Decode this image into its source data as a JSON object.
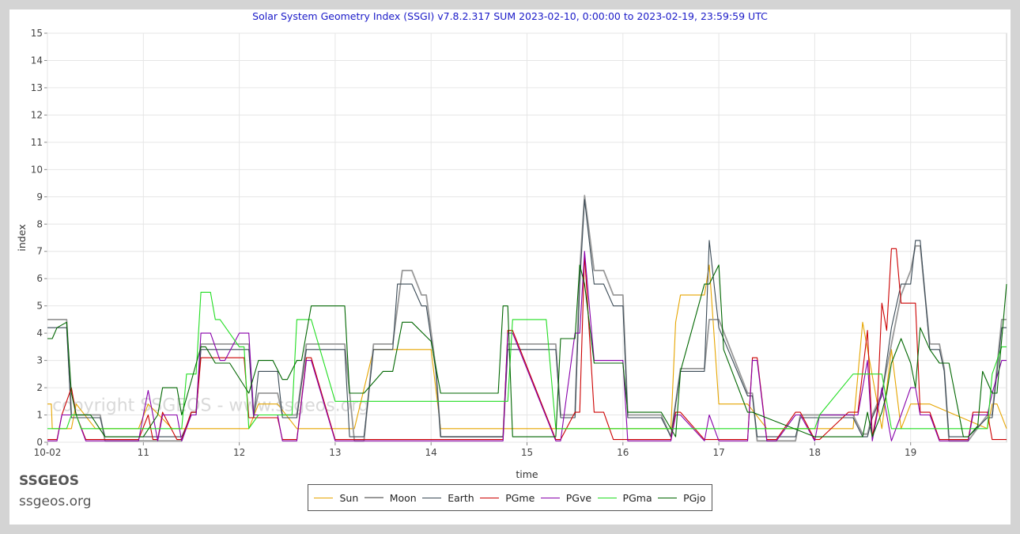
{
  "title": "Solar System Geometry Index (SSGI) v7.8.2.317 SUM 2023-02-10,  0:00:00 to 2023-02-19, 23:59:59 UTC",
  "brand": {
    "name": "SSGEOS",
    "url": "ssgeos.org"
  },
  "watermark": "copyright SSGEOS - www.ssgeos.org",
  "chart_data": {
    "type": "line",
    "title": "Solar System Geometry Index (SSGI) v7.8.2.317 SUM 2023-02-10,  0:00:00 to 2023-02-19, 23:59:59 UTC",
    "xlabel": "time",
    "ylabel": "index",
    "xlim": [
      10,
      20
    ],
    "ylim": [
      0,
      15
    ],
    "x_ticks": [
      10,
      11,
      12,
      13,
      14,
      15,
      16,
      17,
      18,
      19
    ],
    "x_tick_labels": [
      "10-02",
      "11",
      "12",
      "13",
      "14",
      "15",
      "16",
      "17",
      "18",
      "19"
    ],
    "y_ticks": [
      0,
      1,
      2,
      3,
      4,
      5,
      6,
      7,
      8,
      9,
      10,
      11,
      12,
      13,
      14,
      15
    ],
    "y_tick_labels": [
      "0",
      "1",
      "2",
      "3",
      "4",
      "5",
      "6",
      "7",
      "8",
      "9",
      "10",
      "11",
      "12",
      "13",
      "14",
      "15"
    ],
    "grid": true,
    "legend_position": "bottom-center",
    "series": [
      {
        "name": "Sun",
        "color": "#e6a500",
        "x": [
          10,
          10.04,
          10.05,
          10.25,
          10.3,
          10.5,
          10.95,
          11.05,
          11.3,
          11.5,
          12.1,
          12.2,
          12.4,
          12.6,
          12.7,
          13.2,
          13.4,
          13.5,
          14.0,
          14.1,
          14.8,
          15.4,
          16.5,
          16.55,
          16.6,
          16.85,
          16.9,
          17.0,
          17.3,
          17.5,
          18.4,
          18.5,
          18.7,
          18.8,
          18.9,
          19.0,
          19.2,
          19.8,
          19.85,
          19.9,
          20
        ],
        "y": [
          1.4,
          1.4,
          0.5,
          0.5,
          1.4,
          0.5,
          0.5,
          1.4,
          0.5,
          0.5,
          0.5,
          1.4,
          1.4,
          0.5,
          0.5,
          0.5,
          3.4,
          3.4,
          3.4,
          0.5,
          0.5,
          0.5,
          0.5,
          4.4,
          5.4,
          5.4,
          6.5,
          1.4,
          1.4,
          0.5,
          0.5,
          4.4,
          0.5,
          3.4,
          0.5,
          1.4,
          1.4,
          0.5,
          1.4,
          1.4,
          0.5
        ]
      },
      {
        "name": "Moon",
        "color": "#999999",
        "x": [
          10,
          10.2,
          10.25,
          10.3,
          10.4,
          10.55,
          10.6,
          10.95,
          11.0,
          11.4,
          11.5,
          11.55,
          11.6,
          12.0,
          12.1,
          12.15,
          12.2,
          12.4,
          12.45,
          12.6,
          12.7,
          12.75,
          13.1,
          13.2,
          13.3,
          13.4,
          13.6,
          13.7,
          13.8,
          13.9,
          13.95,
          14.05,
          14.1,
          14.75,
          14.8,
          14.85,
          15.3,
          15.35,
          15.5,
          15.55,
          15.6,
          15.7,
          15.8,
          15.9,
          16.0,
          16.05,
          16.4,
          16.5,
          16.6,
          16.85,
          16.9,
          17.0,
          17.3,
          17.35,
          17.4,
          17.6,
          17.8,
          17.85,
          18.0,
          18.05,
          18.4,
          18.5,
          18.55,
          18.6,
          18.7,
          18.8,
          18.9,
          19.0,
          19.05,
          19.1,
          19.2,
          19.3,
          19.35,
          19.4,
          19.6,
          19.8,
          19.85,
          19.95,
          20
        ],
        "y": [
          4.5,
          4.5,
          1.0,
          1.0,
          1.0,
          1.0,
          0.05,
          0.05,
          0.05,
          0.05,
          1.1,
          1.1,
          3.6,
          3.6,
          3.6,
          1.0,
          1.8,
          1.8,
          1.0,
          1.0,
          3.6,
          3.6,
          3.6,
          0.05,
          0.05,
          3.6,
          3.6,
          6.3,
          6.3,
          5.4,
          5.4,
          2.7,
          0.2,
          0.2,
          3.6,
          3.6,
          3.6,
          1.0,
          1.0,
          6.3,
          9.05,
          6.3,
          6.3,
          5.4,
          5.4,
          1.0,
          1.0,
          0.2,
          2.7,
          2.7,
          4.5,
          4.5,
          1.8,
          1.8,
          0.05,
          0.05,
          0.05,
          1.0,
          1.0,
          1.0,
          1.0,
          0.3,
          0.3,
          1.0,
          1.8,
          3.6,
          5.4,
          6.3,
          7.2,
          7.2,
          3.6,
          3.6,
          2.7,
          0.05,
          0.05,
          1.0,
          1.0,
          4.5,
          4.5
        ]
      },
      {
        "name": "Earth",
        "color": "#3a4a56",
        "x": [
          10,
          10.2,
          10.25,
          10.55,
          10.6,
          10.95,
          11.05,
          11.4,
          11.5,
          11.55,
          11.6,
          12.0,
          12.1,
          12.15,
          12.2,
          12.4,
          12.45,
          12.6,
          12.7,
          12.75,
          13.1,
          13.15,
          13.3,
          13.4,
          13.6,
          13.65,
          13.8,
          13.9,
          13.95,
          14.05,
          14.1,
          14.75,
          14.8,
          14.85,
          15.3,
          15.35,
          15.5,
          15.55,
          15.6,
          15.7,
          15.8,
          15.9,
          16.0,
          16.05,
          16.4,
          16.5,
          16.6,
          16.85,
          16.9,
          17.0,
          17.3,
          17.35,
          17.4,
          17.6,
          17.8,
          17.85,
          18.0,
          18.05,
          18.4,
          18.5,
          18.55,
          18.6,
          18.7,
          18.8,
          18.9,
          19.0,
          19.05,
          19.1,
          19.2,
          19.3,
          19.35,
          19.4,
          19.6,
          19.8,
          19.85,
          19.95,
          20
        ],
        "y": [
          4.2,
          4.2,
          0.9,
          0.9,
          0.2,
          0.2,
          0.2,
          0.2,
          1.0,
          1.0,
          3.4,
          3.4,
          3.4,
          0.9,
          2.6,
          2.6,
          0.9,
          0.9,
          3.4,
          3.4,
          3.4,
          0.2,
          0.2,
          3.4,
          3.4,
          5.8,
          5.8,
          5.0,
          5.0,
          2.6,
          0.2,
          0.2,
          3.4,
          3.4,
          3.4,
          0.9,
          0.9,
          5.8,
          8.9,
          5.8,
          5.8,
          5.0,
          5.0,
          0.9,
          0.9,
          0.2,
          2.6,
          2.6,
          7.4,
          4.2,
          1.7,
          1.7,
          0.2,
          0.2,
          0.2,
          0.9,
          0.9,
          0.9,
          0.9,
          0.2,
          0.2,
          0.9,
          1.7,
          4.2,
          5.8,
          5.8,
          7.4,
          7.4,
          3.4,
          3.4,
          2.6,
          0.2,
          0.2,
          0.9,
          0.9,
          4.2,
          4.2
        ]
      },
      {
        "name": "PGme",
        "color": "#cc0000",
        "x": [
          10,
          10.1,
          10.15,
          10.25,
          10.3,
          10.4,
          10.5,
          10.9,
          10.95,
          11.05,
          11.1,
          11.15,
          11.2,
          11.35,
          11.4,
          11.5,
          11.55,
          11.6,
          12.05,
          12.1,
          12.4,
          12.45,
          12.6,
          12.7,
          12.75,
          13.0,
          13.5,
          14.0,
          14.5,
          14.75,
          14.8,
          14.85,
          15.3,
          15.35,
          15.5,
          15.55,
          15.6,
          15.7,
          15.8,
          15.9,
          16.0,
          16.05,
          16.5,
          16.55,
          16.6,
          16.85,
          16.9,
          17.0,
          17.3,
          17.35,
          17.4,
          17.5,
          17.6,
          17.8,
          17.85,
          18.0,
          18.05,
          18.35,
          18.45,
          18.55,
          18.6,
          18.65,
          18.7,
          18.75,
          18.8,
          18.85,
          18.9,
          19.0,
          19.05,
          19.1,
          19.2,
          19.3,
          19.6,
          19.65,
          19.8,
          19.85,
          20
        ],
        "y": [
          0.1,
          0.1,
          1.0,
          2.0,
          1.0,
          0.1,
          0.1,
          0.1,
          0.1,
          1.0,
          0.1,
          0.1,
          1.1,
          0.1,
          0.1,
          1.1,
          1.1,
          3.1,
          3.1,
          0.9,
          0.9,
          0.1,
          0.1,
          3.1,
          3.1,
          0.1,
          0.1,
          0.1,
          0.1,
          0.1,
          4.1,
          4.1,
          0.1,
          0.1,
          1.1,
          1.1,
          6.9,
          1.1,
          1.1,
          0.1,
          0.1,
          0.1,
          0.1,
          1.1,
          1.1,
          0.1,
          0.1,
          0.1,
          0.1,
          3.1,
          3.1,
          0.1,
          0.1,
          1.1,
          1.1,
          0.1,
          0.1,
          1.1,
          1.1,
          4.1,
          0.2,
          1.1,
          5.1,
          4.1,
          7.1,
          7.1,
          5.1,
          5.1,
          5.1,
          1.1,
          1.1,
          0.1,
          0.1,
          1.1,
          1.1,
          0.1,
          0.1
        ]
      },
      {
        "name": "PGve",
        "color": "#8800aa",
        "x": [
          10,
          10.1,
          10.15,
          10.25,
          10.3,
          10.4,
          10.55,
          10.9,
          10.95,
          11.0,
          11.05,
          11.1,
          11.15,
          11.2,
          11.35,
          11.4,
          11.5,
          11.55,
          11.6,
          11.7,
          11.8,
          11.85,
          12.0,
          12.1,
          12.15,
          12.4,
          12.45,
          12.6,
          12.7,
          12.75,
          13.0,
          13.5,
          14.0,
          14.5,
          14.75,
          14.8,
          14.85,
          15.3,
          15.35,
          15.5,
          15.55,
          15.6,
          15.7,
          15.8,
          16.0,
          16.05,
          16.5,
          16.55,
          16.6,
          16.85,
          16.9,
          17.0,
          17.3,
          17.35,
          17.4,
          17.5,
          17.6,
          17.8,
          17.85,
          18.0,
          18.05,
          18.35,
          18.45,
          18.55,
          18.6,
          18.65,
          18.7,
          18.8,
          18.9,
          19.0,
          19.05,
          19.1,
          19.2,
          19.3,
          19.6,
          19.65,
          19.8,
          19.85,
          19.95,
          20
        ],
        "y": [
          0.05,
          0.05,
          1.0,
          1.0,
          1.0,
          0.05,
          0.05,
          0.05,
          0.05,
          1.0,
          1.9,
          1.0,
          0.05,
          1.0,
          1.0,
          0.05,
          1.0,
          1.0,
          4.0,
          4.0,
          3.0,
          3.0,
          4.0,
          4.0,
          1.0,
          1.0,
          0.05,
          0.05,
          3.0,
          3.0,
          0.05,
          0.05,
          0.05,
          0.05,
          0.05,
          4.0,
          4.0,
          0.05,
          0.05,
          4.0,
          4.0,
          7.0,
          3.0,
          3.0,
          3.0,
          0.05,
          0.05,
          1.0,
          1.0,
          0.05,
          1.0,
          0.05,
          0.05,
          3.0,
          3.0,
          0.05,
          0.05,
          1.0,
          1.0,
          0.05,
          1.0,
          1.0,
          1.0,
          3.0,
          0.05,
          1.0,
          2.0,
          0.05,
          1.0,
          2.0,
          2.0,
          1.0,
          1.0,
          0.05,
          0.05,
          1.0,
          1.0,
          1.8,
          3.0,
          3.0
        ]
      },
      {
        "name": "PGma",
        "color": "#22dd22",
        "x": [
          10,
          10.2,
          10.25,
          10.3,
          10.35,
          10.55,
          11.0,
          11.05,
          11.4,
          11.45,
          11.55,
          11.6,
          11.7,
          11.75,
          11.8,
          12.0,
          12.05,
          12.1,
          12.2,
          12.5,
          12.55,
          12.6,
          12.75,
          13.0,
          13.5,
          14.0,
          14.5,
          14.8,
          14.85,
          15.2,
          15.3,
          15.5,
          16.0,
          16.5,
          17.0,
          17.5,
          18.0,
          18.05,
          18.4,
          18.45,
          18.55,
          18.6,
          18.7,
          18.8,
          19.0,
          19.5,
          19.8,
          19.85,
          19.95,
          20
        ],
        "y": [
          0.5,
          0.5,
          1.0,
          1.0,
          0.5,
          0.5,
          0.5,
          0.5,
          0.5,
          2.5,
          2.5,
          5.5,
          5.5,
          4.5,
          4.5,
          3.5,
          3.5,
          0.5,
          1.0,
          1.0,
          1.0,
          4.5,
          4.5,
          1.5,
          1.5,
          1.5,
          1.5,
          1.5,
          4.5,
          4.5,
          0.5,
          0.5,
          0.5,
          0.5,
          0.5,
          0.5,
          0.5,
          1.0,
          2.5,
          2.5,
          2.5,
          2.5,
          2.5,
          0.5,
          0.5,
          0.5,
          0.5,
          2.5,
          3.5,
          3.5
        ]
      },
      {
        "name": "PGjo",
        "color": "#006600",
        "x": [
          10,
          10.05,
          10.1,
          10.2,
          10.25,
          10.3,
          10.45,
          10.6,
          10.95,
          11.0,
          11.15,
          11.2,
          11.35,
          11.4,
          11.6,
          11.65,
          11.75,
          11.9,
          12.1,
          12.2,
          12.35,
          12.45,
          12.5,
          12.6,
          12.65,
          12.75,
          13.0,
          13.1,
          13.15,
          13.3,
          13.5,
          13.6,
          13.7,
          13.8,
          14.0,
          14.1,
          14.5,
          14.7,
          14.75,
          14.8,
          14.85,
          15.3,
          15.35,
          15.5,
          15.55,
          15.6,
          15.7,
          16.0,
          16.05,
          16.4,
          16.55,
          16.6,
          16.85,
          16.9,
          17.0,
          17.05,
          17.3,
          17.35,
          18.0,
          18.5,
          18.55,
          18.6,
          18.7,
          18.75,
          18.8,
          18.9,
          19.0,
          19.05,
          19.1,
          19.2,
          19.3,
          19.4,
          19.55,
          19.6,
          19.7,
          19.75,
          19.85,
          19.9,
          20
        ],
        "y": [
          3.8,
          3.8,
          4.2,
          4.4,
          1.8,
          1.0,
          1.0,
          0.2,
          0.2,
          0.2,
          1.0,
          2.0,
          2.0,
          1.0,
          3.5,
          3.5,
          2.9,
          2.9,
          1.8,
          3.0,
          3.0,
          2.3,
          2.3,
          3.0,
          3.0,
          5.0,
          5.0,
          5.0,
          1.8,
          1.8,
          2.6,
          2.6,
          4.4,
          4.4,
          3.7,
          1.8,
          1.8,
          1.8,
          5.0,
          5.0,
          0.2,
          0.2,
          3.8,
          3.8,
          6.5,
          5.8,
          2.9,
          2.9,
          1.1,
          1.1,
          0.2,
          2.6,
          5.8,
          5.8,
          6.5,
          3.4,
          1.1,
          1.1,
          0.2,
          0.2,
          1.1,
          0.2,
          1.1,
          1.8,
          2.9,
          3.8,
          2.9,
          2.0,
          4.2,
          3.4,
          2.9,
          2.9,
          0.2,
          0.2,
          0.6,
          2.6,
          1.8,
          1.8,
          5.8
        ]
      }
    ]
  }
}
